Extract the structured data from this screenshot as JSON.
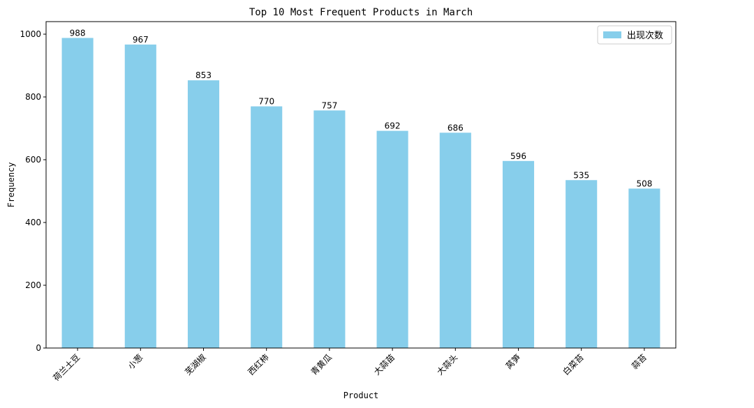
{
  "chart_data": {
    "type": "bar",
    "title": "Top 10 Most Frequent Products in March",
    "xlabel": "Product",
    "ylabel": "Frequency",
    "categories": [
      "荷兰土豆",
      "小葱",
      "芜湖椒",
      "西红柿",
      "青黄瓜",
      "大蒜苗",
      "大蒜头",
      "莴笋",
      "白菜苔",
      "蒜苔"
    ],
    "series": [
      {
        "name": "出现次数",
        "values": [
          988,
          967,
          853,
          770,
          757,
          692,
          686,
          596,
          535,
          508
        ]
      }
    ],
    "ylim": [
      0,
      1040
    ],
    "yticks": [
      0,
      200,
      400,
      600,
      800,
      1000
    ],
    "grid": false,
    "legend_position": "top-right",
    "bar_color": "#87CEEB"
  }
}
